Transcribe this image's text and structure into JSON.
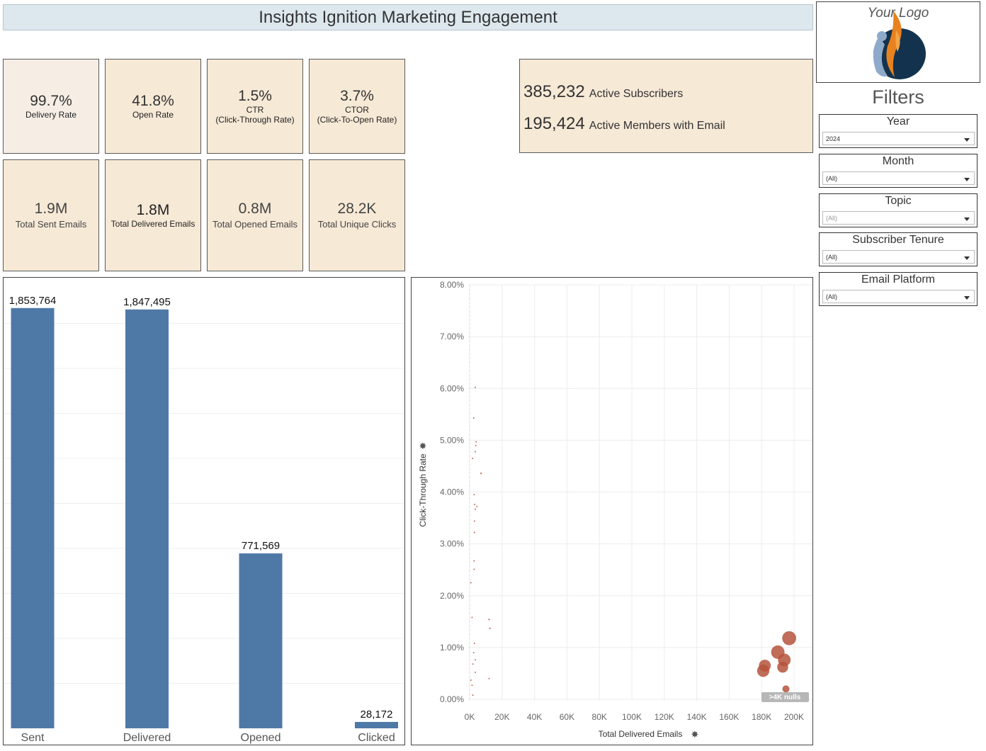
{
  "title": "Insights Ignition Marketing Engagement",
  "kpis_top": [
    {
      "value": "99.7%",
      "label": "Delivery Rate"
    },
    {
      "value": "41.8%",
      "label": "Open Rate"
    },
    {
      "value": "1.5%",
      "label": "CTR",
      "sublabel": "(Click-Through Rate)"
    },
    {
      "value": "3.7%",
      "label": "CTOR",
      "sublabel": "(Click-To-Open Rate)"
    }
  ],
  "kpis_bottom": [
    {
      "value": "1.9M",
      "label": "Total Sent Emails"
    },
    {
      "value": "1.8M",
      "label": "Total Delivered Emails"
    },
    {
      "value": "0.8M",
      "label": "Total Opened Emails"
    },
    {
      "value": "28.2K",
      "label": "Total Unique Clicks"
    }
  ],
  "subscribers": {
    "active_value": "385,232",
    "active_label": "Active Subscribers",
    "members_value": "195,424",
    "members_label": "Active Members with Email"
  },
  "logo": {
    "text": "Your Logo"
  },
  "filters": {
    "title": "Filters",
    "items": [
      {
        "label": "Year",
        "value": "2024"
      },
      {
        "label": "Month",
        "value": "(All)"
      },
      {
        "label": "Topic",
        "value": "(All)"
      },
      {
        "label": "Subscriber Tenure",
        "value": "(All)"
      },
      {
        "label": "Email Platform",
        "value": "(All)"
      }
    ]
  },
  "colors": {
    "bar": "#4e79a7",
    "dot": "#b5533c",
    "kpi_bg": "#f6e9d6",
    "title_bg": "#dde8ee"
  },
  "chart_data": [
    {
      "type": "bar",
      "categories": [
        "Sent",
        "Delivered",
        "Opened",
        "Clicked"
      ],
      "values": [
        1853764,
        1847495,
        771569,
        28172
      ],
      "value_labels": [
        "1,853,764",
        "1,847,495",
        "771,569",
        "28,172"
      ],
      "ylim": [
        0,
        1950000
      ],
      "grid": true
    },
    {
      "type": "scatter",
      "xlabel": "Total Delivered Emails",
      "ylabel": "Click-Through Rate",
      "xlim": [
        0,
        200000
      ],
      "ylim": [
        0,
        0.08
      ],
      "x_ticks": [
        "0K",
        "20K",
        "40K",
        "60K",
        "80K",
        "100K",
        "120K",
        "140K",
        "160K",
        "180K",
        "200K"
      ],
      "y_ticks": [
        "0.00%",
        "1.00%",
        "2.00%",
        "3.00%",
        "4.00%",
        "5.00%",
        "6.00%",
        "7.00%",
        "8.00%"
      ],
      "null_indicator": ">4K nulls",
      "grid": true,
      "points": [
        {
          "x": 3500,
          "y": 0.0602,
          "size": 1500
        },
        {
          "x": 2500,
          "y": 0.0543,
          "size": 1000
        },
        {
          "x": 4000,
          "y": 0.0497,
          "size": 1500
        },
        {
          "x": 3800,
          "y": 0.049,
          "size": 1500
        },
        {
          "x": 3500,
          "y": 0.0478,
          "size": 1500
        },
        {
          "x": 1800,
          "y": 0.0465,
          "size": 1000
        },
        {
          "x": 7000,
          "y": 0.0436,
          "size": 2500
        },
        {
          "x": 2800,
          "y": 0.0395,
          "size": 1000
        },
        {
          "x": 3100,
          "y": 0.0376,
          "size": 1000
        },
        {
          "x": 4500,
          "y": 0.0372,
          "size": 2000
        },
        {
          "x": 3500,
          "y": 0.0367,
          "size": 1000
        },
        {
          "x": 3000,
          "y": 0.0344,
          "size": 1000
        },
        {
          "x": 3000,
          "y": 0.0322,
          "size": 1500
        },
        {
          "x": 2800,
          "y": 0.0267,
          "size": 1000
        },
        {
          "x": 2800,
          "y": 0.0251,
          "size": 1000
        },
        {
          "x": 12000,
          "y": 0.0154,
          "size": 2500
        },
        {
          "x": 12500,
          "y": 0.0137,
          "size": 2500
        },
        {
          "x": 12000,
          "y": 0.004,
          "size": 1200
        },
        {
          "x": 800,
          "y": 0.0225,
          "size": 100
        },
        {
          "x": 1500,
          "y": 0.0158,
          "size": 100
        },
        {
          "x": 3000,
          "y": 0.0108,
          "size": 100
        },
        {
          "x": 2500,
          "y": 0.009,
          "size": 100
        },
        {
          "x": 3500,
          "y": 0.0076,
          "size": 100
        },
        {
          "x": 2000,
          "y": 0.0068,
          "size": 200
        },
        {
          "x": 3500,
          "y": 0.0052,
          "size": 100
        },
        {
          "x": 800,
          "y": 0.0037,
          "size": 100
        },
        {
          "x": 1500,
          "y": 0.0027,
          "size": 300
        },
        {
          "x": 2000,
          "y": 0.0008,
          "size": 100
        },
        {
          "x": 197000,
          "y": 0.0118,
          "size": 195000
        },
        {
          "x": 190000,
          "y": 0.0091,
          "size": 180000
        },
        {
          "x": 194000,
          "y": 0.0076,
          "size": 160000
        },
        {
          "x": 182000,
          "y": 0.0065,
          "size": 140000
        },
        {
          "x": 193000,
          "y": 0.0062,
          "size": 120000
        },
        {
          "x": 181000,
          "y": 0.0055,
          "size": 150000
        },
        {
          "x": 195000,
          "y": 0.002,
          "size": 50000
        }
      ]
    }
  ]
}
